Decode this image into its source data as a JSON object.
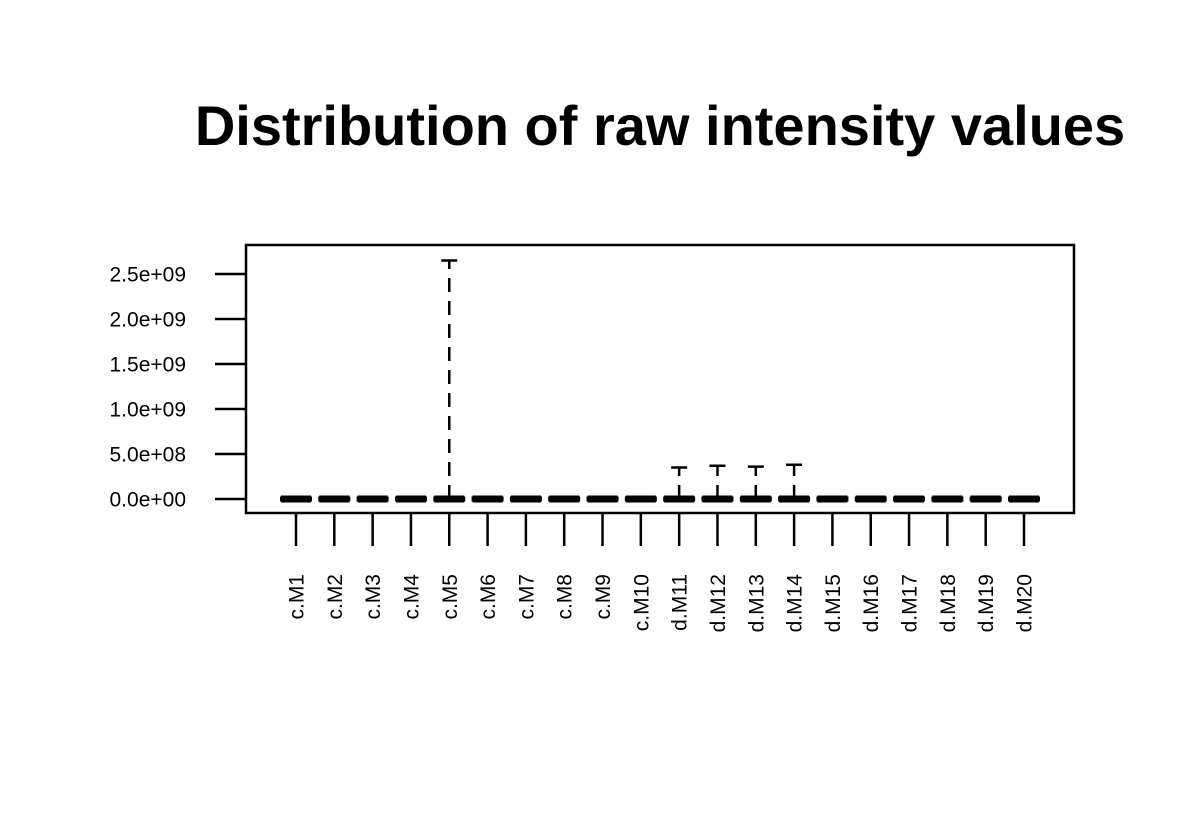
{
  "chart_data": {
    "type": "boxplot",
    "title": "Distribution of raw intensity values",
    "xlabel": "",
    "ylabel": "",
    "ylim": [
      -150000000,
      2800000000
    ],
    "y_ticks": [
      0,
      500000000,
      1000000000,
      1500000000,
      2000000000,
      2500000000
    ],
    "y_tick_labels": [
      "0.0e+00",
      "5.0e+08",
      "1.0e+09",
      "1.5e+09",
      "2.0e+09",
      "2.5e+09"
    ],
    "categories": [
      "c.M1",
      "c.M2",
      "c.M3",
      "c.M4",
      "c.M5",
      "c.M6",
      "c.M7",
      "c.M8",
      "c.M9",
      "c.M10",
      "d.M11",
      "d.M12",
      "d.M13",
      "d.M14",
      "d.M15",
      "d.M16",
      "d.M17",
      "d.M18",
      "d.M19",
      "d.M20"
    ],
    "upper_whisker": [
      5000000,
      6000000,
      5000000,
      5000000,
      2650000000,
      3000000,
      3000000,
      3000000,
      3000000,
      3000000,
      350000000,
      370000000,
      360000000,
      380000000,
      3000000,
      3000000,
      3000000,
      3000000,
      3000000,
      3000000
    ],
    "median": [
      0,
      0,
      0,
      0,
      0,
      0,
      0,
      0,
      0,
      0,
      0,
      0,
      0,
      0,
      0,
      0,
      0,
      0,
      0,
      0
    ],
    "grid": false,
    "legend": "none"
  }
}
